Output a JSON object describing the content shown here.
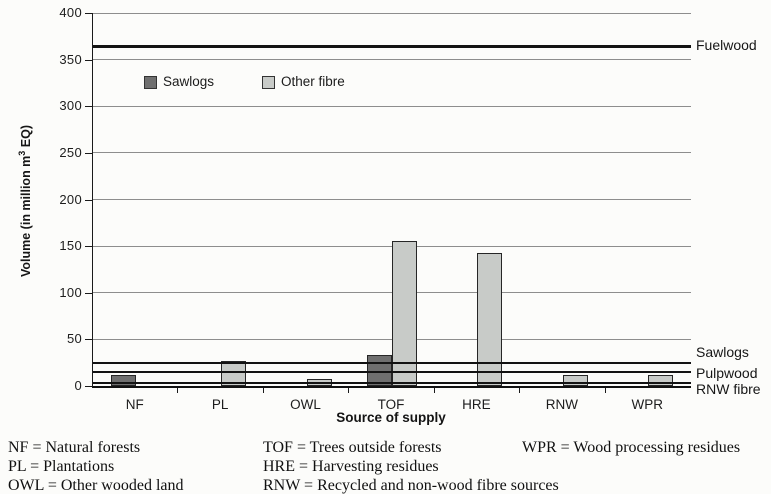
{
  "chart_data": {
    "type": "bar",
    "title": "",
    "xlabel": "Source of supply",
    "ylabel": "Volume (in million m³ EQ)",
    "ylabel_parts": {
      "pre": "Volume (in million m",
      "sup": "3",
      "post": " EQ)"
    },
    "ylim": [
      0,
      400
    ],
    "yticks": [
      0,
      50,
      100,
      150,
      200,
      250,
      300,
      350,
      400
    ],
    "grid": true,
    "legend_position": "top-left-inside",
    "categories": [
      "NF",
      "PL",
      "OWL",
      "TOF",
      "HRE",
      "RNW",
      "WPR"
    ],
    "series": [
      {
        "name": "Sawlogs",
        "color": "#6f6f6f",
        "values": [
          12,
          0,
          0,
          33,
          0,
          0,
          0
        ]
      },
      {
        "name": "Other fibre",
        "color": "#c8cbc8",
        "values": [
          0,
          27,
          8,
          155,
          143,
          12,
          12
        ]
      }
    ],
    "reference_lines": [
      {
        "label": "Fuelwood",
        "value": 365
      },
      {
        "label": "Sawlogs",
        "value": 25
      },
      {
        "label": "Pulpwood",
        "value": 15
      },
      {
        "label": "RNW fibre",
        "value": 3
      }
    ]
  },
  "footnotes": {
    "col1": [
      "NF = Natural forests",
      "PL = Plantations",
      "OWL = Other wooded land"
    ],
    "col2": [
      "TOF = Trees outside forests",
      "HRE = Harvesting residues",
      "RNW = Recycled and non-wood fibre sources"
    ],
    "col3": [
      "WPR = Wood processing residues"
    ]
  }
}
